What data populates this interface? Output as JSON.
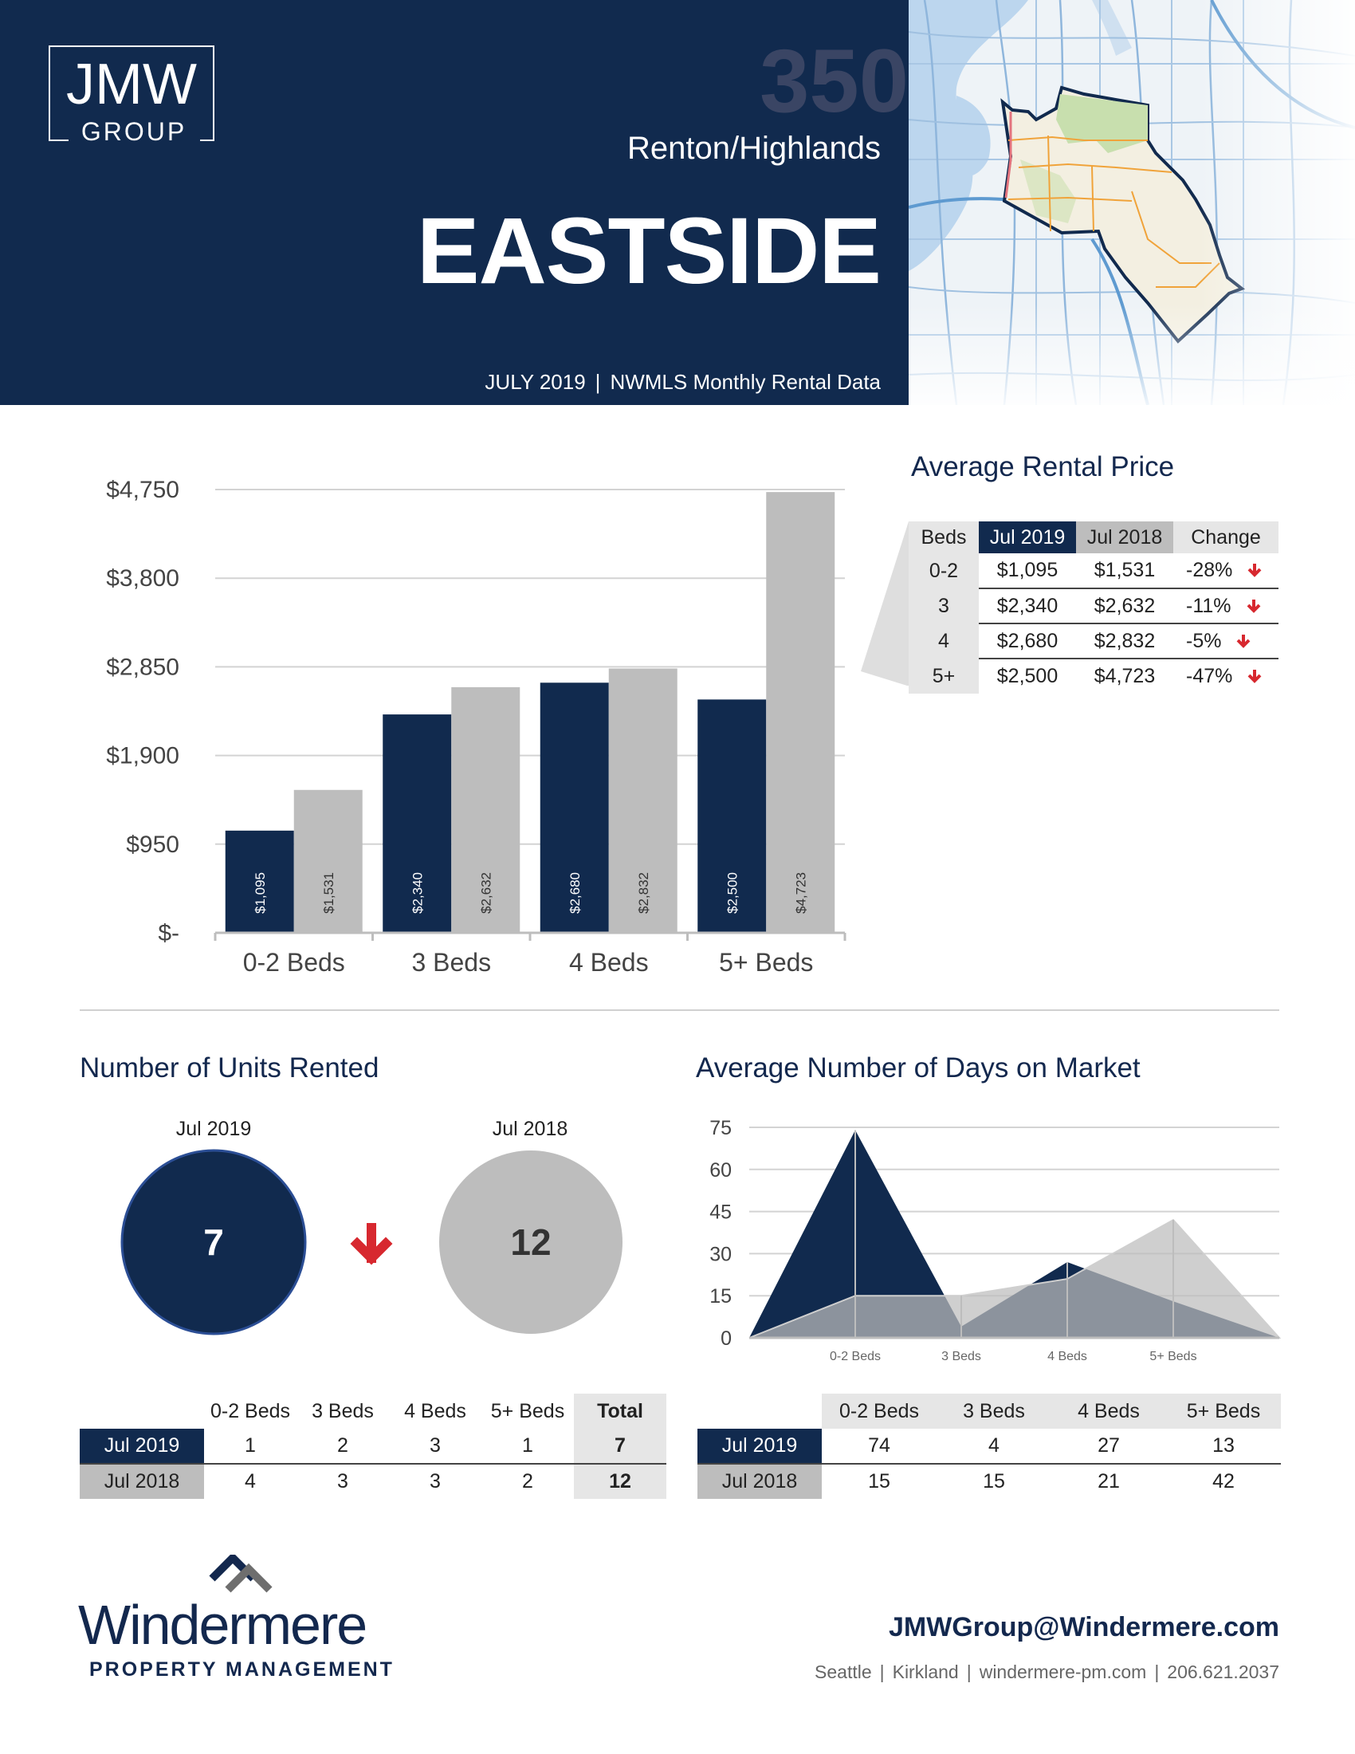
{
  "header": {
    "logo_main": "JMW",
    "logo_sub": "GROUP",
    "area_number": "350",
    "area_name": "Renton/Highlands",
    "region": "EASTSIDE",
    "month": "JULY 2019",
    "separator": "|",
    "source": "NWMLS Monthly Rental Data"
  },
  "colors": {
    "navy": "#112a4e",
    "gray": "#bdbdbd",
    "light_gray": "#e6e6e6",
    "red": "#d7282f"
  },
  "price_section": {
    "title": "Average Rental Price",
    "columns": [
      "Beds",
      "Jul 2019",
      "Jul 2018",
      "Change"
    ],
    "rows": [
      {
        "beds": "0-2",
        "jul2019": "$1,095",
        "jul2018": "$1,531",
        "change": "-28%"
      },
      {
        "beds": "3",
        "jul2019": "$2,340",
        "jul2018": "$2,632",
        "change": "-11%"
      },
      {
        "beds": "4",
        "jul2019": "$2,680",
        "jul2018": "$2,832",
        "change": "-5%"
      },
      {
        "beds": "5+",
        "jul2019": "$2,500",
        "jul2018": "$4,723",
        "change": "-47%"
      }
    ]
  },
  "units_section": {
    "title": "Number of Units Rented",
    "circle_2019_label": "Jul 2019",
    "circle_2019_value": "7",
    "circle_2018_label": "Jul 2018",
    "circle_2018_value": "12",
    "columns": [
      "0-2 Beds",
      "3 Beds",
      "4 Beds",
      "5+ Beds",
      "Total"
    ],
    "rows": [
      {
        "label": "Jul 2019",
        "values": [
          "1",
          "2",
          "3",
          "1",
          "7"
        ]
      },
      {
        "label": "Jul 2018",
        "values": [
          "4",
          "3",
          "3",
          "2",
          "12"
        ]
      }
    ]
  },
  "days_section": {
    "title": "Average Number of Days on Market",
    "columns": [
      "0-2 Beds",
      "3 Beds",
      "4 Beds",
      "5+ Beds"
    ],
    "rows": [
      {
        "label": "Jul 2019",
        "values": [
          "74",
          "4",
          "27",
          "13"
        ]
      },
      {
        "label": "Jul 2018",
        "values": [
          "15",
          "15",
          "21",
          "42"
        ]
      }
    ]
  },
  "chart_data": [
    {
      "type": "bar",
      "categories": [
        "0-2 Beds",
        "3 Beds",
        "4 Beds",
        "5+ Beds"
      ],
      "series": [
        {
          "values": [
            1095,
            2340,
            2680,
            2500
          ],
          "labels": [
            "$1,095",
            "$2,340",
            "$2,680",
            "$2,500"
          ],
          "color": "#112a4e"
        },
        {
          "values": [
            1531,
            2632,
            2832,
            4723
          ],
          "labels": [
            "$1,531",
            "$2,632",
            "$2,832",
            "$4,723"
          ],
          "color": "#bdbdbd"
        }
      ],
      "yticks": [
        0,
        950,
        1900,
        2850,
        3800,
        4750
      ],
      "ytick_labels": [
        "$-",
        "$950",
        "$1,900",
        "$2,850",
        "$3,800",
        "$4,750"
      ],
      "ylim": [
        0,
        4750
      ],
      "grid": true,
      "legend": "none"
    },
    {
      "type": "area",
      "categories": [
        "0-2 Beds",
        "3 Beds",
        "4 Beds",
        "5+ Beds"
      ],
      "series": [
        {
          "values": [
            74,
            4,
            27,
            13
          ],
          "color": "#112a4e"
        },
        {
          "values": [
            15,
            15,
            21,
            42
          ],
          "color": "#bdbdbd"
        }
      ],
      "yticks": [
        0,
        15,
        30,
        45,
        60,
        75
      ],
      "ylim": [
        0,
        75
      ],
      "grid": true,
      "legend": "none"
    }
  ],
  "footer": {
    "brand_name": "Windermere",
    "brand_sub": "PROPERTY MANAGEMENT",
    "email": "JMWGroup@Windermere.com",
    "city1": "Seattle",
    "city2": "Kirkland",
    "website": "windermere-pm.com",
    "phone": "206.621.2037",
    "separator": "|"
  }
}
